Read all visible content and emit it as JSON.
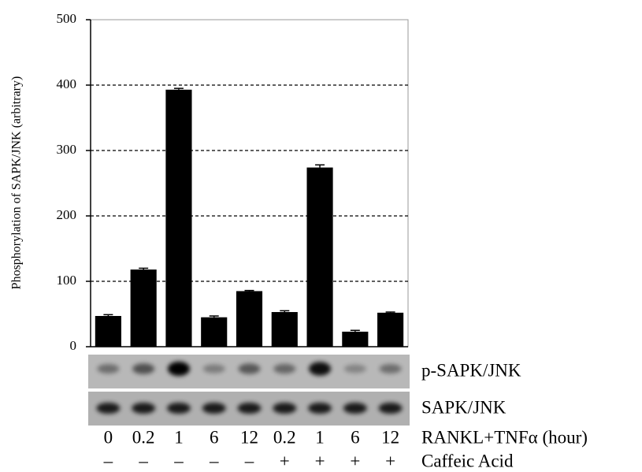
{
  "chart_data": {
    "type": "bar",
    "y_label": "Phosphorylation of SAPK/JNK (arbitrary)",
    "categories": [
      "0",
      "0.2",
      "1",
      "6",
      "12",
      "0.2",
      "1",
      "6",
      "12"
    ],
    "values": [
      47,
      118,
      393,
      45,
      85,
      53,
      274,
      23,
      52
    ],
    "errors": [
      2,
      2,
      2,
      2,
      1,
      2,
      4,
      2,
      1
    ],
    "color": "#000000",
    "ylim": [
      0,
      500
    ],
    "yticks": [
      0,
      100,
      200,
      300,
      400,
      500
    ],
    "grid": true,
    "blot_labels": [
      "p-SAPK/JNK",
      "SAPK/JNK"
    ],
    "row_labels": [
      "RANKL+TNFα (hour)",
      "Caffeic Acid"
    ],
    "caffeic": [
      "–",
      "–",
      "–",
      "–",
      "–",
      "+",
      "+",
      "+",
      "+"
    ]
  }
}
